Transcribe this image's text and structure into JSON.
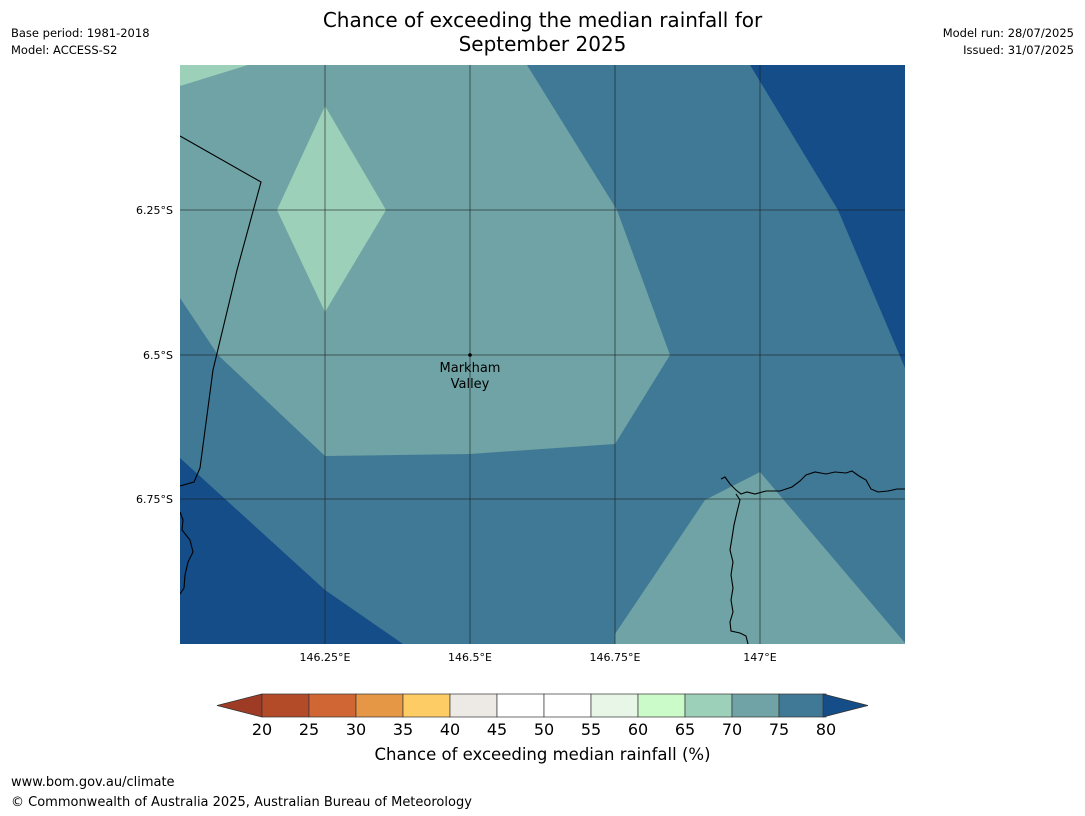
{
  "title": {
    "line1": "Chance of exceeding the median rainfall for",
    "line2": "September 2025"
  },
  "meta_left": {
    "base_period": "Base period: 1981-2018",
    "model": "Model: ACCESS-S2"
  },
  "meta_right": {
    "model_run": "Model run: 28/07/2025",
    "issued": "Issued: 31/07/2025"
  },
  "map": {
    "lat_ticks": [
      "6.25°S",
      "6.5°S",
      "6.75°S"
    ],
    "lon_ticks": [
      "146.25°E",
      "146.5°E",
      "146.75°E",
      "147°E"
    ],
    "place": {
      "name_line1": "Markham",
      "name_line2": "Valley",
      "lon": 146.5,
      "lat": -6.5
    },
    "colors": {
      "c65_70": "#9dd0b8",
      "c70_75": "#6fa3a5",
      "c75_80": "#407996",
      "c80_plus": "#144d88"
    }
  },
  "colorbar": {
    "title": "Chance of exceeding median rainfall (%)",
    "ticks": [
      "20",
      "25",
      "30",
      "35",
      "40",
      "45",
      "50",
      "55",
      "60",
      "65",
      "70",
      "75",
      "80"
    ],
    "under_color": "#9d3b24",
    "over_color": "#144d88",
    "colors": [
      "#b34a28",
      "#d06634",
      "#e59746",
      "#fdcc64",
      "#ede9e5",
      "#ffffff",
      "#ffffff",
      "#e8f6e8",
      "#cbfbc8",
      "#9dd0b8",
      "#6fa3a5",
      "#407996"
    ]
  },
  "footer": {
    "url": "www.bom.gov.au/climate",
    "copyright": "© Commonwealth of Australia 2025, Australian Bureau of Meteorology"
  }
}
